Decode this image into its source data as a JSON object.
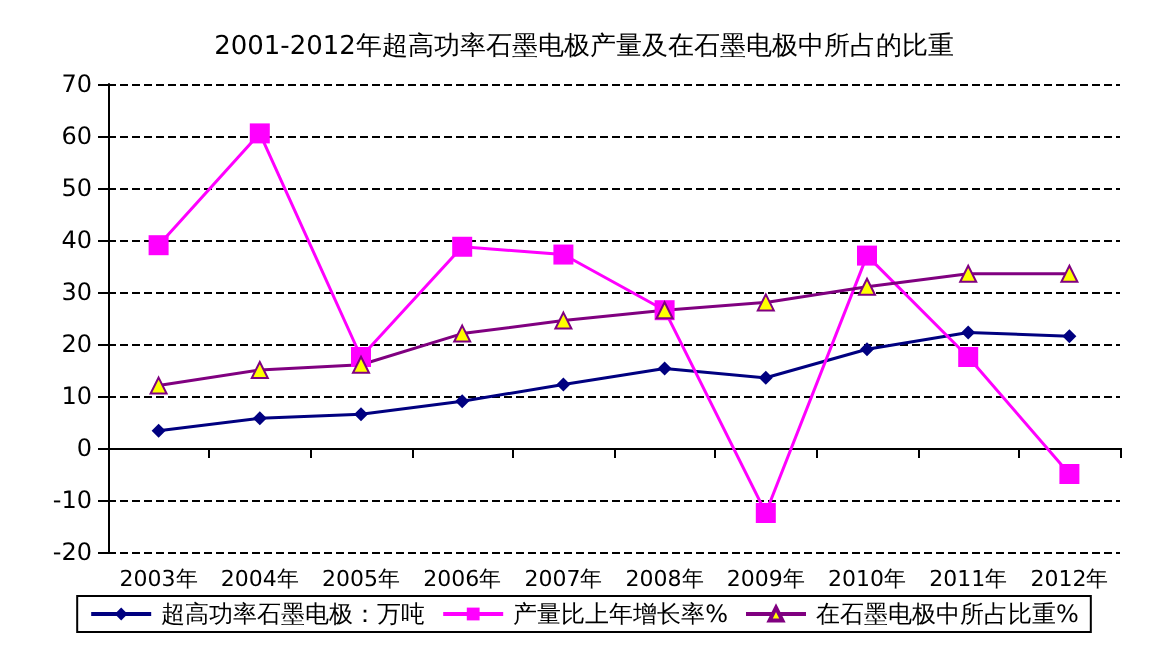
{
  "chart_data": {
    "type": "line",
    "title": "2001-2012年超高功率石墨电极产量及在石墨电极中所占的比重",
    "categories": [
      "2003年",
      "2004年",
      "2005年",
      "2006年",
      "2007年",
      "2008年",
      "2009年",
      "2010年",
      "2011年",
      "2012年"
    ],
    "series": [
      {
        "name": "超高功率石墨电极：万吨",
        "color": "#000080",
        "marker": "diamond",
        "values": [
          3.3,
          5.7,
          6.5,
          9,
          12.2,
          15.3,
          13.5,
          19,
          22.2,
          21.5
        ]
      },
      {
        "name": "产量比上年增长率%",
        "color": "#ff00ff",
        "marker": "square",
        "values": [
          39,
          60.5,
          17.5,
          38.7,
          37.2,
          26.5,
          -12.5,
          37,
          17.5,
          -5
        ]
      },
      {
        "name": "在石墨电极中所占比重%",
        "color": "#800080",
        "marker": "triangle",
        "values": [
          12,
          15,
          16,
          22,
          24.5,
          26.5,
          28,
          31,
          33.5,
          33.5
        ]
      }
    ],
    "ylim": [
      -20,
      70
    ],
    "yticks": [
      -20,
      -10,
      0,
      10,
      20,
      30,
      40,
      50,
      60,
      70
    ],
    "grid": "y",
    "legend": "bottom",
    "line_style": "solid"
  }
}
